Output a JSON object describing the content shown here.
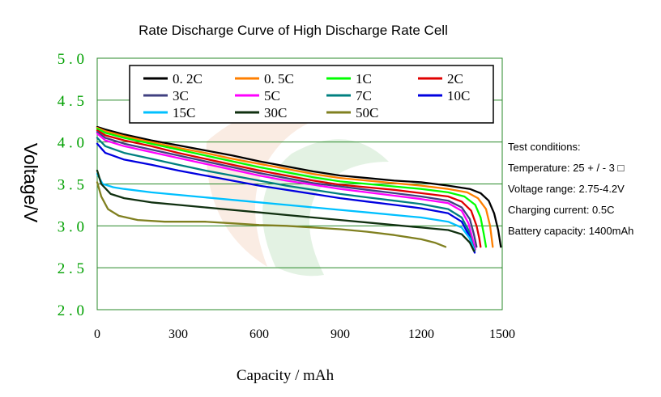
{
  "chart_data": {
    "type": "line",
    "title": "Rate Discharge Curve of High Discharge Rate Cell",
    "xlabel": "Capacity / mAh",
    "ylabel": "Voltage/V",
    "xlim": [
      0,
      1500
    ],
    "ylim": [
      2.0,
      5.0
    ],
    "x_ticks": [
      "0",
      "300",
      "600",
      "900",
      "1200",
      "1500"
    ],
    "y_ticks": [
      "2.0",
      "2.5",
      "3.0",
      "3.5",
      "4.0",
      "4.5",
      "5.0"
    ],
    "grid": "horizontal",
    "legend_position": "top",
    "notes": [
      "Test conditions:",
      "Temperature: 25 + / - 3 □",
      "Voltage range: 2.75-4.2V",
      "Charging current: 0.5C",
      "Battery capacity: 1400mAh"
    ],
    "series": [
      {
        "name": "0.2C",
        "color": "#000000",
        "points": [
          [
            0,
            4.18
          ],
          [
            30,
            4.15
          ],
          [
            100,
            4.09
          ],
          [
            200,
            4.02
          ],
          [
            300,
            3.96
          ],
          [
            400,
            3.9
          ],
          [
            500,
            3.84
          ],
          [
            600,
            3.77
          ],
          [
            700,
            3.71
          ],
          [
            800,
            3.65
          ],
          [
            900,
            3.6
          ],
          [
            1000,
            3.57
          ],
          [
            1100,
            3.54
          ],
          [
            1200,
            3.52
          ],
          [
            1300,
            3.48
          ],
          [
            1380,
            3.44
          ],
          [
            1420,
            3.39
          ],
          [
            1450,
            3.3
          ],
          [
            1470,
            3.15
          ],
          [
            1485,
            2.95
          ],
          [
            1495,
            2.75
          ]
        ]
      },
      {
        "name": "0.5C",
        "color": "#ff7f00",
        "points": [
          [
            0,
            4.17
          ],
          [
            30,
            4.13
          ],
          [
            100,
            4.07
          ],
          [
            200,
            4.0
          ],
          [
            300,
            3.93
          ],
          [
            400,
            3.87
          ],
          [
            500,
            3.8
          ],
          [
            600,
            3.74
          ],
          [
            700,
            3.68
          ],
          [
            800,
            3.62
          ],
          [
            900,
            3.57
          ],
          [
            1000,
            3.54
          ],
          [
            1100,
            3.51
          ],
          [
            1200,
            3.48
          ],
          [
            1300,
            3.44
          ],
          [
            1370,
            3.4
          ],
          [
            1410,
            3.33
          ],
          [
            1440,
            3.2
          ],
          [
            1455,
            3.0
          ],
          [
            1465,
            2.75
          ]
        ]
      },
      {
        "name": "1C",
        "color": "#00ff00",
        "points": [
          [
            0,
            4.16
          ],
          [
            30,
            4.11
          ],
          [
            100,
            4.05
          ],
          [
            200,
            3.98
          ],
          [
            300,
            3.91
          ],
          [
            400,
            3.84
          ],
          [
            500,
            3.77
          ],
          [
            600,
            3.7
          ],
          [
            700,
            3.64
          ],
          [
            800,
            3.58
          ],
          [
            900,
            3.53
          ],
          [
            1000,
            3.5
          ],
          [
            1100,
            3.47
          ],
          [
            1200,
            3.44
          ],
          [
            1300,
            3.4
          ],
          [
            1360,
            3.35
          ],
          [
            1400,
            3.25
          ],
          [
            1420,
            3.1
          ],
          [
            1432,
            2.9
          ],
          [
            1440,
            2.75
          ]
        ]
      },
      {
        "name": "2C",
        "color": "#e00000",
        "points": [
          [
            0,
            4.14
          ],
          [
            30,
            4.08
          ],
          [
            100,
            4.02
          ],
          [
            200,
            3.95
          ],
          [
            300,
            3.87
          ],
          [
            400,
            3.8
          ],
          [
            500,
            3.73
          ],
          [
            600,
            3.66
          ],
          [
            700,
            3.6
          ],
          [
            800,
            3.54
          ],
          [
            900,
            3.49
          ],
          [
            1000,
            3.46
          ],
          [
            1100,
            3.43
          ],
          [
            1200,
            3.39
          ],
          [
            1300,
            3.35
          ],
          [
            1350,
            3.29
          ],
          [
            1385,
            3.18
          ],
          [
            1405,
            3.0
          ],
          [
            1415,
            2.85
          ],
          [
            1420,
            2.75
          ]
        ]
      },
      {
        "name": "3C",
        "color": "#404080",
        "points": [
          [
            0,
            4.12
          ],
          [
            30,
            4.05
          ],
          [
            100,
            3.98
          ],
          [
            200,
            3.91
          ],
          [
            300,
            3.84
          ],
          [
            400,
            3.77
          ],
          [
            500,
            3.7
          ],
          [
            600,
            3.63
          ],
          [
            700,
            3.57
          ],
          [
            800,
            3.51
          ],
          [
            900,
            3.47
          ],
          [
            1000,
            3.43
          ],
          [
            1100,
            3.39
          ],
          [
            1200,
            3.35
          ],
          [
            1300,
            3.3
          ],
          [
            1350,
            3.22
          ],
          [
            1380,
            3.08
          ],
          [
            1395,
            2.9
          ],
          [
            1405,
            2.75
          ]
        ]
      },
      {
        "name": "5C",
        "color": "#ff00ff",
        "points": [
          [
            0,
            4.1
          ],
          [
            30,
            4.02
          ],
          [
            100,
            3.95
          ],
          [
            200,
            3.88
          ],
          [
            300,
            3.81
          ],
          [
            400,
            3.74
          ],
          [
            500,
            3.67
          ],
          [
            600,
            3.6
          ],
          [
            700,
            3.54
          ],
          [
            800,
            3.49
          ],
          [
            900,
            3.44
          ],
          [
            1000,
            3.4
          ],
          [
            1100,
            3.36
          ],
          [
            1200,
            3.32
          ],
          [
            1300,
            3.27
          ],
          [
            1350,
            3.18
          ],
          [
            1375,
            3.03
          ],
          [
            1390,
            2.85
          ],
          [
            1400,
            2.72
          ]
        ]
      },
      {
        "name": "7C",
        "color": "#008080",
        "points": [
          [
            0,
            4.05
          ],
          [
            30,
            3.95
          ],
          [
            100,
            3.87
          ],
          [
            200,
            3.8
          ],
          [
            300,
            3.73
          ],
          [
            400,
            3.66
          ],
          [
            500,
            3.6
          ],
          [
            600,
            3.54
          ],
          [
            700,
            3.48
          ],
          [
            800,
            3.43
          ],
          [
            900,
            3.38
          ],
          [
            1000,
            3.34
          ],
          [
            1100,
            3.3
          ],
          [
            1200,
            3.26
          ],
          [
            1300,
            3.2
          ],
          [
            1350,
            3.1
          ],
          [
            1375,
            2.95
          ],
          [
            1390,
            2.78
          ],
          [
            1398,
            2.7
          ]
        ]
      },
      {
        "name": "10C",
        "color": "#0000e0",
        "points": [
          [
            0,
            3.98
          ],
          [
            30,
            3.87
          ],
          [
            100,
            3.79
          ],
          [
            200,
            3.73
          ],
          [
            300,
            3.66
          ],
          [
            400,
            3.6
          ],
          [
            500,
            3.54
          ],
          [
            600,
            3.48
          ],
          [
            700,
            3.43
          ],
          [
            800,
            3.38
          ],
          [
            900,
            3.33
          ],
          [
            1000,
            3.29
          ],
          [
            1100,
            3.25
          ],
          [
            1200,
            3.21
          ],
          [
            1300,
            3.15
          ],
          [
            1350,
            3.05
          ],
          [
            1375,
            2.9
          ],
          [
            1390,
            2.75
          ],
          [
            1398,
            2.68
          ]
        ]
      },
      {
        "name": "15C",
        "color": "#00c0ff",
        "points": [
          [
            0,
            3.62
          ],
          [
            20,
            3.5
          ],
          [
            60,
            3.46
          ],
          [
            100,
            3.44
          ],
          [
            200,
            3.4
          ],
          [
            300,
            3.37
          ],
          [
            400,
            3.34
          ],
          [
            500,
            3.31
          ],
          [
            600,
            3.28
          ],
          [
            700,
            3.25
          ],
          [
            800,
            3.22
          ],
          [
            900,
            3.19
          ],
          [
            1000,
            3.16
          ],
          [
            1100,
            3.13
          ],
          [
            1200,
            3.1
          ],
          [
            1300,
            3.05
          ],
          [
            1350,
            2.98
          ],
          [
            1380,
            2.85
          ],
          [
            1395,
            2.72
          ]
        ]
      },
      {
        "name": "30C",
        "color": "#103010",
        "points": [
          [
            0,
            3.66
          ],
          [
            15,
            3.5
          ],
          [
            50,
            3.38
          ],
          [
            100,
            3.33
          ],
          [
            200,
            3.28
          ],
          [
            300,
            3.25
          ],
          [
            400,
            3.22
          ],
          [
            500,
            3.19
          ],
          [
            600,
            3.16
          ],
          [
            700,
            3.13
          ],
          [
            800,
            3.1
          ],
          [
            900,
            3.07
          ],
          [
            1000,
            3.04
          ],
          [
            1100,
            3.01
          ],
          [
            1200,
            2.98
          ],
          [
            1300,
            2.95
          ],
          [
            1350,
            2.9
          ],
          [
            1380,
            2.8
          ],
          [
            1395,
            2.7
          ]
        ]
      },
      {
        "name": "50C",
        "color": "#808020",
        "points": [
          [
            0,
            3.52
          ],
          [
            15,
            3.35
          ],
          [
            40,
            3.2
          ],
          [
            80,
            3.12
          ],
          [
            150,
            3.07
          ],
          [
            250,
            3.05
          ],
          [
            400,
            3.05
          ],
          [
            500,
            3.03
          ],
          [
            600,
            3.01
          ],
          [
            700,
            3.0
          ],
          [
            800,
            2.98
          ],
          [
            900,
            2.96
          ],
          [
            1000,
            2.93
          ],
          [
            1100,
            2.89
          ],
          [
            1200,
            2.84
          ],
          [
            1250,
            2.8
          ],
          [
            1290,
            2.75
          ]
        ]
      }
    ]
  }
}
